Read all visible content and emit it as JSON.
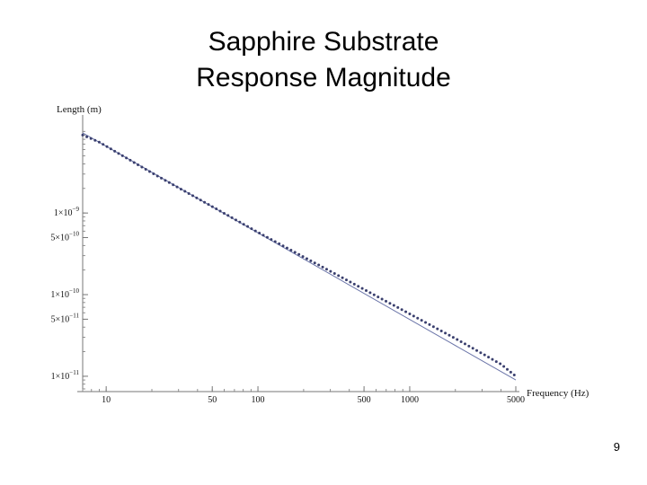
{
  "slide": {
    "title_line_1": "Sapphire Substrate",
    "title_line_2": "Response Magnitude",
    "page_number": "9"
  },
  "chart_data": {
    "type": "line",
    "title": "Sapphire Substrate Response Magnitude",
    "xlabel": "Frequency (Hz)",
    "ylabel": "Length (m)",
    "x_scale": "log",
    "y_scale": "log",
    "xlim": [
      7,
      5000
    ],
    "ylim": [
      7e-12,
      1.4e-08
    ],
    "grid": false,
    "x_ticks": [
      {
        "value": 10,
        "label": "10"
      },
      {
        "value": 50,
        "label": "50"
      },
      {
        "value": 100,
        "label": "100"
      },
      {
        "value": 500,
        "label": "500"
      },
      {
        "value": 1000,
        "label": "1000"
      },
      {
        "value": 5000,
        "label": "5000"
      }
    ],
    "y_ticks": [
      {
        "value": 1e-09,
        "mantissa": "1",
        "exponent": "−9"
      },
      {
        "value": 5e-10,
        "mantissa": "5",
        "exponent": "−10"
      },
      {
        "value": 1e-10,
        "mantissa": "1",
        "exponent": "−10"
      },
      {
        "value": 5e-11,
        "mantissa": "5",
        "exponent": "−11"
      },
      {
        "value": 1e-11,
        "mantissa": "1",
        "exponent": "−11"
      }
    ],
    "series": [
      {
        "style": "solid",
        "color": "#6a74a8",
        "x": [
          7,
          5000
        ],
        "y": [
          9.6e-09,
          9e-12
        ]
      },
      {
        "style": "dotted",
        "color": "#3a3f6e",
        "x": [
          7,
          9,
          12,
          20,
          50,
          100,
          500,
          1000,
          2000,
          3000,
          4000,
          5000
        ],
        "y": [
          9e-09,
          7.4e-09,
          5.4e-09,
          3.1e-09,
          1.2e-09,
          5.8e-10,
          1.16e-10,
          5.8e-11,
          2.9e-11,
          1.9e-11,
          1.4e-11,
          1e-11
        ]
      }
    ]
  }
}
